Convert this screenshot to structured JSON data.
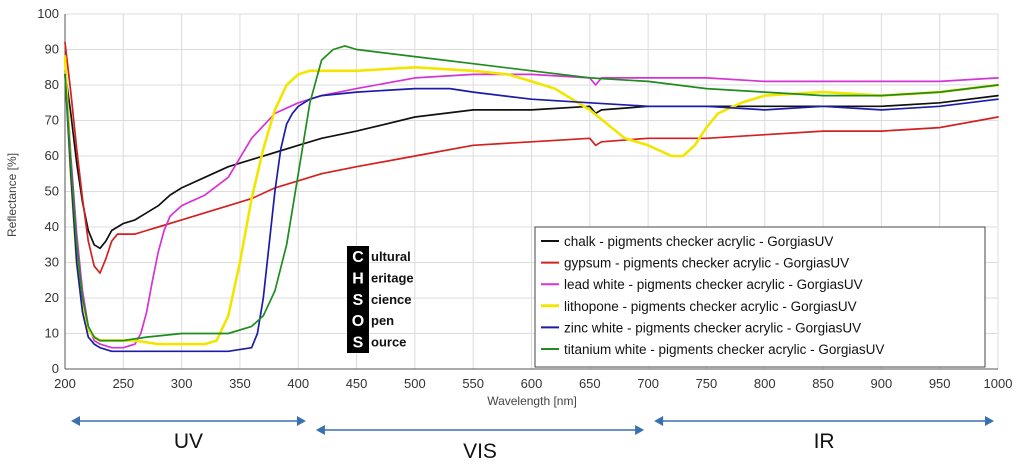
{
  "chart_data": {
    "type": "line",
    "title": "",
    "xlabel": "Wavelength [nm]",
    "ylabel": "Reflectance [%]",
    "xlim": [
      200,
      1000
    ],
    "ylim": [
      0,
      100
    ],
    "x_ticks": [
      200,
      250,
      300,
      350,
      400,
      450,
      500,
      550,
      600,
      650,
      700,
      750,
      800,
      850,
      900,
      950,
      1000
    ],
    "y_ticks": [
      0,
      10,
      20,
      30,
      40,
      50,
      60,
      70,
      80,
      90,
      100
    ],
    "grid": true,
    "legend_position": "bottom-right",
    "series": [
      {
        "name": "chalk - pigments checker acrylic - GorgiasUV",
        "color": "#111111",
        "x": [
          200,
          205,
          210,
          215,
          220,
          225,
          230,
          235,
          240,
          245,
          250,
          260,
          270,
          280,
          290,
          300,
          320,
          340,
          360,
          380,
          400,
          420,
          450,
          500,
          550,
          600,
          650,
          655,
          660,
          700,
          750,
          800,
          850,
          900,
          950,
          1000
        ],
        "y": [
          84,
          72,
          58,
          47,
          39,
          35,
          34,
          36,
          39,
          40,
          41,
          42,
          44,
          46,
          49,
          51,
          54,
          57,
          59,
          61,
          63,
          65,
          67,
          71,
          73,
          73,
          74,
          72,
          73,
          74,
          74,
          74,
          74,
          74,
          75,
          77
        ]
      },
      {
        "name": "gypsum - pigments checker acrylic - GorgiasUV",
        "color": "#d42020",
        "x": [
          200,
          205,
          210,
          215,
          220,
          225,
          230,
          235,
          240,
          245,
          250,
          260,
          270,
          280,
          300,
          320,
          340,
          360,
          380,
          400,
          420,
          450,
          500,
          550,
          600,
          650,
          655,
          660,
          700,
          750,
          800,
          850,
          900,
          950,
          1000
        ],
        "y": [
          92,
          78,
          62,
          48,
          36,
          29,
          27,
          31,
          36,
          38,
          38,
          38,
          39,
          40,
          42,
          44,
          46,
          48,
          51,
          53,
          55,
          57,
          60,
          63,
          64,
          65,
          63,
          64,
          65,
          65,
          66,
          67,
          67,
          68,
          71
        ]
      },
      {
        "name": "lead white - pigments checker acrylic - GorgiasUV",
        "color": "#d633d6",
        "x": [
          200,
          205,
          210,
          215,
          220,
          225,
          230,
          240,
          250,
          260,
          265,
          270,
          275,
          280,
          285,
          290,
          300,
          320,
          340,
          360,
          380,
          400,
          420,
          450,
          500,
          550,
          600,
          650,
          655,
          660,
          700,
          750,
          800,
          850,
          900,
          950,
          1000
        ],
        "y": [
          88,
          60,
          38,
          22,
          12,
          8,
          7,
          6,
          6,
          7,
          10,
          16,
          25,
          33,
          39,
          43,
          46,
          49,
          54,
          65,
          72,
          75,
          77,
          79,
          82,
          83,
          83,
          82,
          80,
          82,
          82,
          82,
          81,
          81,
          81,
          81,
          82
        ]
      },
      {
        "name": "lithopone - pigments checker acrylic - GorgiasUV",
        "color": "#f2e600",
        "x": [
          200,
          205,
          210,
          215,
          220,
          225,
          230,
          240,
          250,
          260,
          280,
          300,
          320,
          330,
          340,
          350,
          360,
          370,
          380,
          390,
          400,
          410,
          420,
          450,
          500,
          550,
          580,
          600,
          620,
          650,
          680,
          700,
          720,
          730,
          740,
          750,
          760,
          780,
          800,
          850,
          900,
          950,
          1000
        ],
        "y": [
          88,
          55,
          30,
          17,
          11,
          9,
          8,
          8,
          8,
          8,
          7,
          7,
          7,
          8,
          15,
          30,
          48,
          62,
          73,
          80,
          83,
          84,
          84,
          84,
          85,
          84,
          83,
          81,
          79,
          73,
          65,
          63,
          60,
          60,
          63,
          68,
          72,
          75,
          77,
          78,
          77,
          78,
          80
        ]
      },
      {
        "name": "zinc white - pigments checker acrylic - GorgiasUV",
        "color": "#1c1ca8",
        "x": [
          200,
          205,
          210,
          215,
          220,
          225,
          230,
          240,
          250,
          260,
          280,
          300,
          320,
          340,
          360,
          365,
          370,
          375,
          380,
          385,
          390,
          395,
          400,
          410,
          420,
          450,
          500,
          530,
          550,
          600,
          650,
          700,
          750,
          800,
          850,
          900,
          950,
          1000
        ],
        "y": [
          83,
          55,
          30,
          16,
          9,
          7,
          6,
          5,
          5,
          5,
          5,
          5,
          5,
          5,
          6,
          10,
          20,
          35,
          50,
          62,
          69,
          72,
          74,
          76,
          77,
          78,
          79,
          79,
          78,
          76,
          75,
          74,
          74,
          73,
          74,
          73,
          74,
          76
        ]
      },
      {
        "name": "titanium white - pigments checker acrylic - GorgiasUV",
        "color": "#1e8c1e",
        "x": [
          200,
          205,
          210,
          215,
          220,
          225,
          230,
          240,
          250,
          270,
          300,
          320,
          340,
          360,
          370,
          380,
          390,
          400,
          410,
          420,
          430,
          440,
          450,
          500,
          550,
          600,
          650,
          700,
          750,
          800,
          850,
          900,
          950,
          1000
        ],
        "y": [
          83,
          58,
          35,
          20,
          12,
          9,
          8,
          8,
          8,
          9,
          10,
          10,
          10,
          12,
          15,
          22,
          35,
          55,
          75,
          87,
          90,
          91,
          90,
          88,
          86,
          84,
          82,
          81,
          79,
          78,
          77,
          77,
          78,
          80
        ]
      }
    ],
    "annotations": {
      "logo": {
        "letters": [
          "C",
          "H",
          "S",
          "O",
          "S"
        ],
        "words": [
          "ultural",
          "eritage",
          "cience",
          "pen",
          "ource"
        ]
      },
      "regions": [
        {
          "label": "UV",
          "from": 200,
          "to": 410
        },
        {
          "label": "VIS",
          "from": 410,
          "to": 700
        },
        {
          "label": "IR",
          "from": 700,
          "to": 1000
        }
      ],
      "region_arrow_color": "#3a6fb0"
    }
  }
}
